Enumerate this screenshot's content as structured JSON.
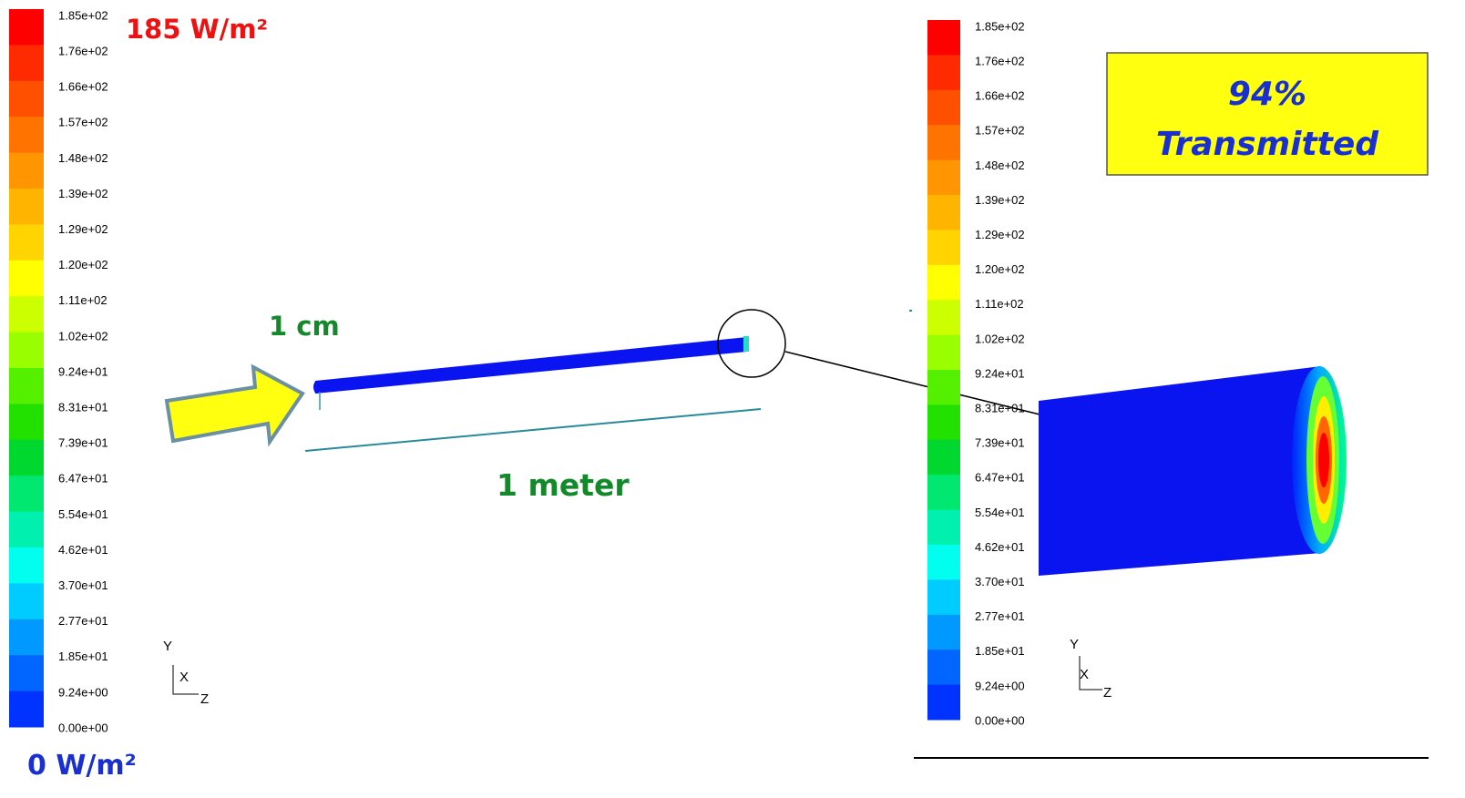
{
  "colorbar_left": {
    "labels": [
      "1.85e+02",
      "1.76e+02",
      "1.66e+02",
      "1.57e+02",
      "1.48e+02",
      "1.39e+02",
      "1.29e+02",
      "1.20e+02",
      "1.11e+02",
      "1.02e+02",
      "9.24e+01",
      "8.31e+01",
      "7.39e+01",
      "6.47e+01",
      "5.54e+01",
      "4.62e+01",
      "3.70e+01",
      "2.77e+01",
      "1.85e+01",
      "9.24e+00",
      "0.00e+00"
    ]
  },
  "colorbar_right": {
    "labels": [
      "1.85e+02",
      "1.76e+02",
      "1.66e+02",
      "1.57e+02",
      "1.48e+02",
      "1.39e+02",
      "1.29e+02",
      "1.20e+02",
      "1.11e+02",
      "1.02e+02",
      "9.24e+01",
      "8.31e+01",
      "7.39e+01",
      "6.47e+01",
      "5.54e+01",
      "4.62e+01",
      "3.70e+01",
      "2.77e+01",
      "1.85e+01",
      "9.24e+00",
      "0.00e+00"
    ]
  },
  "annotations": {
    "max_flux": "185 W/m²",
    "min_flux": "0 W/m²",
    "diameter": "1 cm",
    "length": "1 meter",
    "percent": "94%",
    "transmitted": "Transmitted"
  },
  "axes_left": {
    "y": "Y",
    "x": "X",
    "z": "Z"
  },
  "axes_right": {
    "y": "Y",
    "x": "X",
    "z": "Z"
  }
}
